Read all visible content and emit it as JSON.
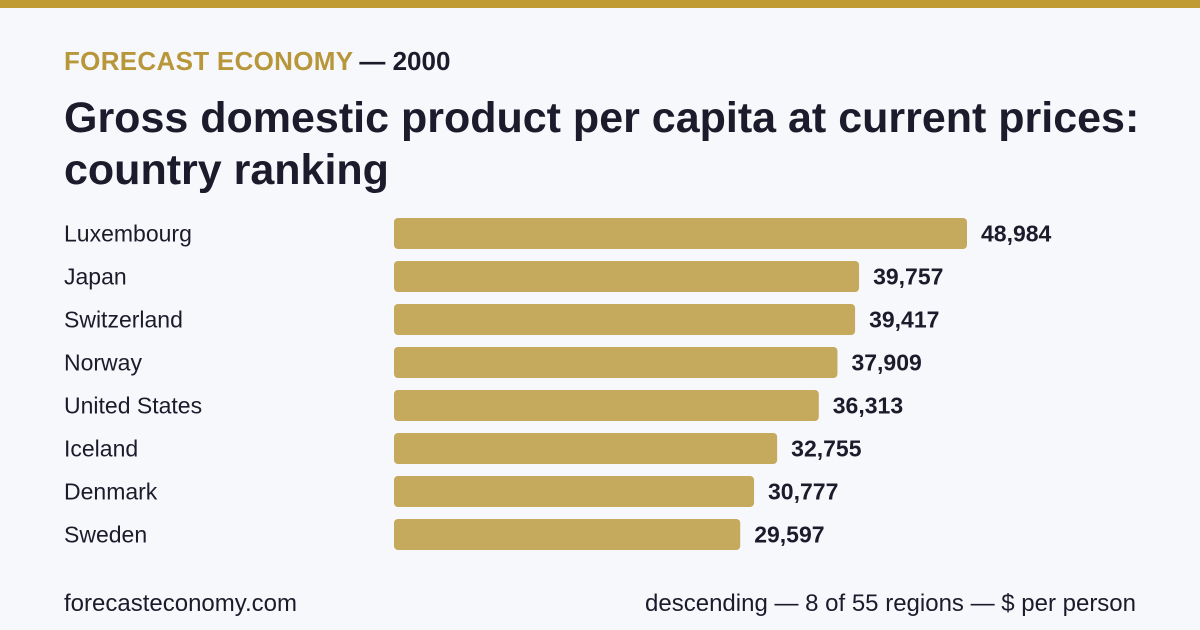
{
  "header": {
    "brand": "FORECAST ECONOMY",
    "year": "— 2000",
    "title": "Gross domestic product per capita at current prices: country ranking"
  },
  "colors": {
    "accent": "#c09b33",
    "bar": "#c5a95c",
    "text": "#1b1b2b",
    "background": "#f7f8fc"
  },
  "chart_data": {
    "type": "bar",
    "orientation": "horizontal",
    "categories": [
      "Luxembourg",
      "Japan",
      "Switzerland",
      "Norway",
      "United States",
      "Iceland",
      "Denmark",
      "Sweden"
    ],
    "values": [
      48984,
      39757,
      39417,
      37909,
      36313,
      32755,
      30777,
      29597
    ],
    "value_labels": [
      "48,984",
      "39,757",
      "39,417",
      "37,909",
      "36,313",
      "32,755",
      "30,777",
      "29,597"
    ],
    "title": "Gross domestic product per capita at current prices: country ranking",
    "xlabel": "",
    "ylabel": "",
    "grid": false
  },
  "footer": {
    "source": "forecasteconomy.com",
    "note": "descending — 8 of 55 regions — $ per person"
  }
}
